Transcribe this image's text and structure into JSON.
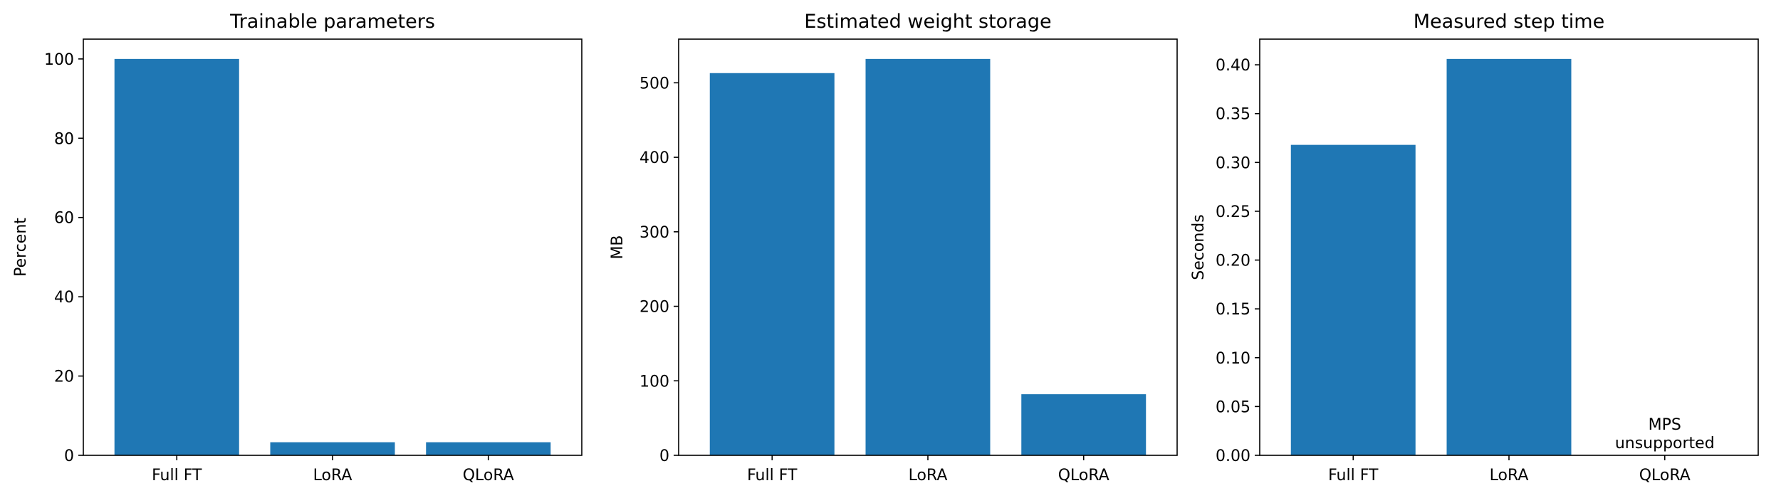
{
  "bar_color": "#1f77b4",
  "chart_data": [
    {
      "type": "bar",
      "title": "Trainable parameters",
      "xlabel": "",
      "ylabel": "Percent",
      "categories": [
        "Full FT",
        "LoRA",
        "QLoRA"
      ],
      "values": [
        100.0,
        3.3,
        3.3
      ],
      "ylim": [
        0,
        105
      ],
      "yticks": [
        0,
        20,
        40,
        60,
        80,
        100
      ],
      "ytick_labels": [
        "0",
        "20",
        "40",
        "60",
        "80",
        "100"
      ],
      "grid": false,
      "annotations": []
    },
    {
      "type": "bar",
      "title": "Estimated weight storage",
      "xlabel": "",
      "ylabel": "MB",
      "categories": [
        "Full FT",
        "LoRA",
        "QLoRA"
      ],
      "values": [
        513,
        532,
        82
      ],
      "ylim": [
        0,
        558.6
      ],
      "yticks": [
        0,
        100,
        200,
        300,
        400,
        500
      ],
      "ytick_labels": [
        "0",
        "100",
        "200",
        "300",
        "400",
        "500"
      ],
      "grid": false,
      "annotations": []
    },
    {
      "type": "bar",
      "title": "Measured step time",
      "xlabel": "",
      "ylabel": "Seconds",
      "categories": [
        "Full FT",
        "LoRA",
        "QLoRA"
      ],
      "values": [
        0.318,
        0.406,
        0
      ],
      "ylim": [
        0,
        0.4263
      ],
      "yticks": [
        0,
        0.05,
        0.1,
        0.15,
        0.2,
        0.25,
        0.3,
        0.35,
        0.4
      ],
      "ytick_labels": [
        "0.00",
        "0.05",
        "0.10",
        "0.15",
        "0.20",
        "0.25",
        "0.30",
        "0.35",
        "0.40"
      ],
      "grid": false,
      "annotations": [
        {
          "category_index": 2,
          "lines": [
            "MPS",
            "unsupported"
          ]
        }
      ]
    }
  ]
}
